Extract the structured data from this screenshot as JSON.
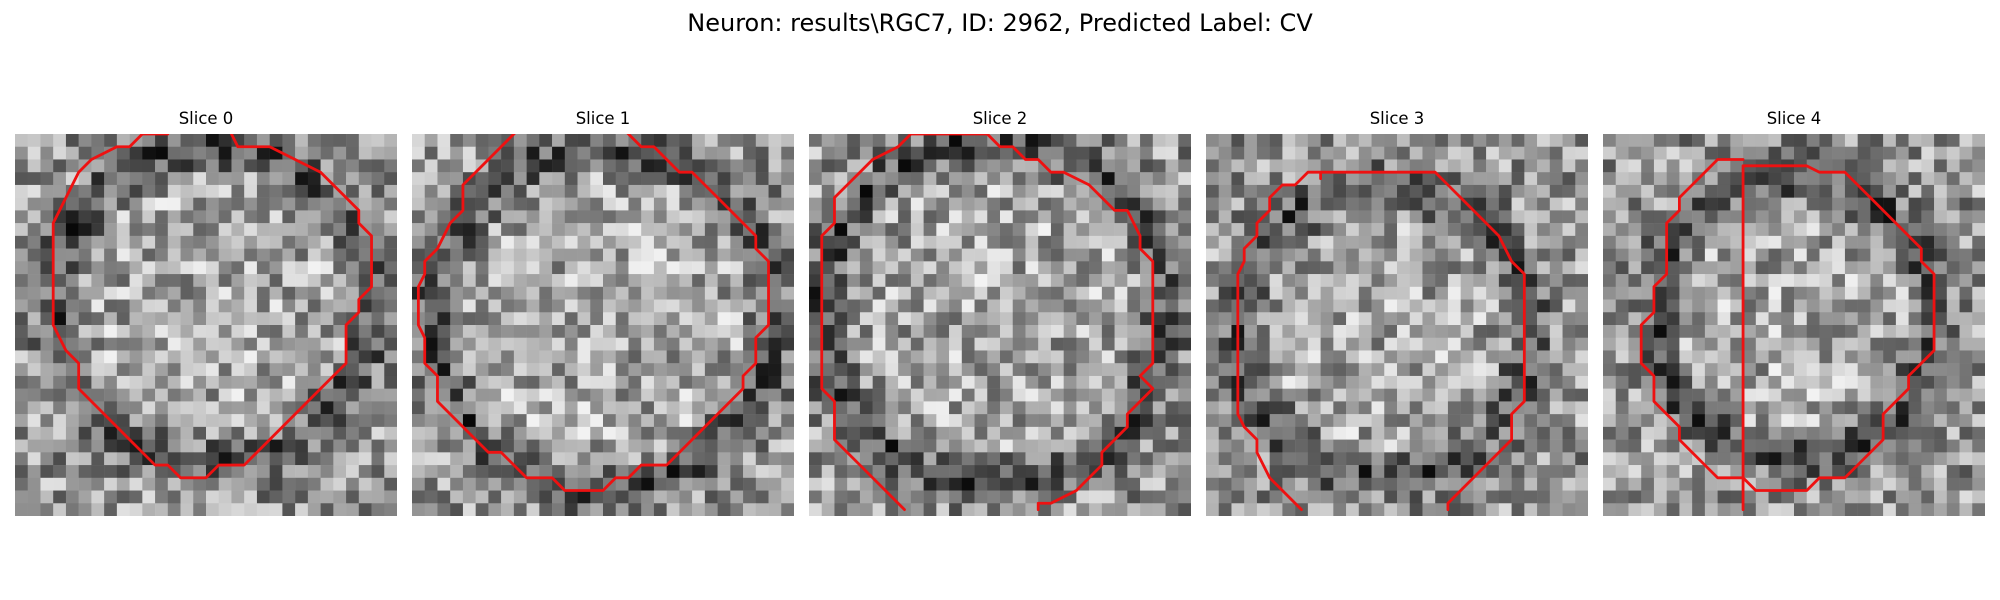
{
  "figure": {
    "title": "Neuron: results\\RGC7, ID: 2962, Predicted Label: CV"
  },
  "image_content": {
    "description_style": "grayscale noisy microscopy patches, 30x30 grid",
    "contour_color": "#ee1111",
    "background_color": "#ffffff"
  },
  "slices": [
    {
      "title": "Slice 0",
      "contour": [
        [
          17,
          0
        ],
        [
          17.5,
          1
        ],
        [
          20,
          1
        ],
        [
          22,
          2
        ],
        [
          24,
          3
        ],
        [
          26,
          5
        ],
        [
          27,
          6
        ],
        [
          27,
          7
        ],
        [
          28,
          8
        ],
        [
          28,
          9
        ],
        [
          28,
          12
        ],
        [
          27,
          13
        ],
        [
          27,
          14
        ],
        [
          26,
          15
        ],
        [
          26,
          18
        ],
        [
          25,
          19
        ],
        [
          24,
          20
        ],
        [
          23,
          21
        ],
        [
          21,
          23
        ],
        [
          19,
          25
        ],
        [
          18,
          26
        ],
        [
          16,
          26
        ],
        [
          15,
          27
        ],
        [
          13,
          27
        ],
        [
          12,
          26
        ],
        [
          11,
          26
        ],
        [
          9,
          24
        ],
        [
          7,
          22
        ],
        [
          5,
          20
        ],
        [
          5,
          18
        ],
        [
          4,
          17
        ],
        [
          3,
          15
        ],
        [
          3,
          7
        ],
        [
          4,
          5
        ],
        [
          5,
          3
        ],
        [
          6,
          2
        ],
        [
          8,
          1
        ],
        [
          9,
          1
        ],
        [
          10,
          0
        ],
        [
          12,
          0
        ],
        [
          12,
          -0.5
        ]
      ],
      "contour_closed": false
    },
    {
      "title": "Slice 1",
      "contour": [
        [
          16.5,
          -0.5
        ],
        [
          18,
          1
        ],
        [
          19,
          1
        ],
        [
          20,
          2
        ],
        [
          21,
          3
        ],
        [
          22,
          3
        ],
        [
          23,
          4
        ],
        [
          24,
          5
        ],
        [
          25,
          6
        ],
        [
          26,
          7
        ],
        [
          27,
          8
        ],
        [
          27,
          9
        ],
        [
          28,
          10
        ],
        [
          28,
          15
        ],
        [
          27,
          16
        ],
        [
          27,
          18
        ],
        [
          26,
          19
        ],
        [
          26,
          20
        ],
        [
          25,
          21
        ],
        [
          24,
          22
        ],
        [
          23,
          23
        ],
        [
          22,
          24
        ],
        [
          21,
          25
        ],
        [
          20,
          26
        ],
        [
          18,
          26
        ],
        [
          17,
          27
        ],
        [
          16,
          27
        ],
        [
          15,
          28
        ],
        [
          12,
          28
        ],
        [
          11,
          27
        ],
        [
          9,
          27
        ],
        [
          8,
          26
        ],
        [
          7,
          25
        ],
        [
          6,
          25
        ],
        [
          5,
          24
        ],
        [
          4,
          23
        ],
        [
          3,
          22
        ],
        [
          2,
          21
        ],
        [
          2,
          19
        ],
        [
          1,
          18
        ],
        [
          1,
          16
        ],
        [
          0.5,
          15
        ],
        [
          0.5,
          12
        ],
        [
          1,
          11
        ],
        [
          1,
          10
        ],
        [
          2,
          9
        ],
        [
          3,
          7
        ],
        [
          4,
          6
        ],
        [
          4,
          4
        ],
        [
          5,
          3
        ],
        [
          6,
          2
        ],
        [
          7,
          1
        ],
        [
          8,
          0
        ],
        [
          8.5,
          -0.5
        ]
      ],
      "contour_closed": false
    },
    {
      "title": "Slice 2",
      "contour": [
        [
          7.5,
          29.5
        ],
        [
          6,
          28
        ],
        [
          4,
          26
        ],
        [
          3,
          25
        ],
        [
          2,
          24
        ],
        [
          2,
          21
        ],
        [
          1,
          20
        ],
        [
          1,
          8
        ],
        [
          2,
          7
        ],
        [
          2,
          5
        ],
        [
          3,
          4
        ],
        [
          4,
          3
        ],
        [
          5,
          2
        ],
        [
          7,
          1
        ],
        [
          8,
          0
        ],
        [
          14,
          0
        ],
        [
          15,
          1
        ],
        [
          16,
          1
        ],
        [
          17,
          2
        ],
        [
          18,
          2
        ],
        [
          19,
          3
        ],
        [
          20,
          3
        ],
        [
          22,
          4
        ],
        [
          23,
          5
        ],
        [
          24,
          6
        ],
        [
          25,
          6
        ],
        [
          26,
          8
        ],
        [
          26,
          9
        ],
        [
          27,
          10
        ],
        [
          27,
          18
        ],
        [
          26,
          19
        ],
        [
          27,
          20
        ],
        [
          26,
          21
        ],
        [
          25,
          22
        ],
        [
          25,
          23
        ],
        [
          24,
          24
        ],
        [
          23,
          25
        ],
        [
          23,
          26
        ],
        [
          22,
          27
        ],
        [
          21,
          28
        ],
        [
          19,
          29
        ],
        [
          18,
          29
        ],
        [
          18,
          29.5
        ]
      ],
      "contour_closed": false
    },
    {
      "title": "Slice 3",
      "contour": [
        [
          7.5,
          29.5
        ],
        [
          6,
          28
        ],
        [
          5,
          27
        ],
        [
          4,
          25
        ],
        [
          4,
          24
        ],
        [
          3,
          23
        ],
        [
          2.5,
          22
        ],
        [
          2.5,
          11
        ],
        [
          3,
          10
        ],
        [
          3,
          9
        ],
        [
          4,
          8
        ],
        [
          4,
          7
        ],
        [
          5,
          6
        ],
        [
          5,
          5
        ],
        [
          6,
          4
        ],
        [
          7,
          4
        ],
        [
          8,
          3
        ],
        [
          9,
          3
        ],
        [
          9,
          3.5
        ],
        [
          9,
          3
        ],
        [
          18,
          3
        ],
        [
          19,
          4
        ],
        [
          20,
          5
        ],
        [
          21,
          6
        ],
        [
          22,
          7
        ],
        [
          23,
          8
        ],
        [
          24,
          10
        ],
        [
          25,
          11
        ],
        [
          25,
          21
        ],
        [
          24,
          22
        ],
        [
          24,
          24
        ],
        [
          23,
          25
        ],
        [
          22,
          26
        ],
        [
          21,
          27
        ],
        [
          20,
          28
        ],
        [
          19,
          29
        ],
        [
          19,
          29.5
        ]
      ],
      "contour_closed": false
    },
    {
      "title": "Slice 4",
      "contour": [
        [
          11,
          29.5
        ],
        [
          11,
          2.5
        ],
        [
          16,
          2.5
        ],
        [
          17,
          3
        ],
        [
          19,
          3
        ],
        [
          20,
          4
        ],
        [
          21,
          5
        ],
        [
          22,
          6
        ],
        [
          23,
          7
        ],
        [
          24,
          8
        ],
        [
          25,
          9
        ],
        [
          25,
          10
        ],
        [
          26,
          11
        ],
        [
          26,
          17
        ],
        [
          25,
          18
        ],
        [
          24,
          19
        ],
        [
          24,
          20
        ],
        [
          23,
          21
        ],
        [
          22,
          22
        ],
        [
          22,
          24
        ],
        [
          21,
          25
        ],
        [
          20,
          26
        ],
        [
          19,
          27
        ],
        [
          17,
          27
        ],
        [
          16,
          28
        ],
        [
          12,
          28
        ],
        [
          11,
          27
        ],
        [
          9,
          27
        ],
        [
          8,
          26
        ],
        [
          7,
          25
        ],
        [
          6,
          24
        ],
        [
          6,
          23
        ],
        [
          5,
          22
        ],
        [
          4,
          21
        ],
        [
          4,
          19
        ],
        [
          3,
          18
        ],
        [
          3,
          15
        ],
        [
          4,
          14
        ],
        [
          4,
          13
        ],
        [
          4,
          12
        ],
        [
          5,
          11
        ],
        [
          5,
          7
        ],
        [
          6,
          6
        ],
        [
          6,
          5
        ],
        [
          7,
          4
        ],
        [
          8,
          3
        ],
        [
          9,
          2
        ],
        [
          11,
          2
        ]
      ],
      "contour_closed": false
    }
  ]
}
